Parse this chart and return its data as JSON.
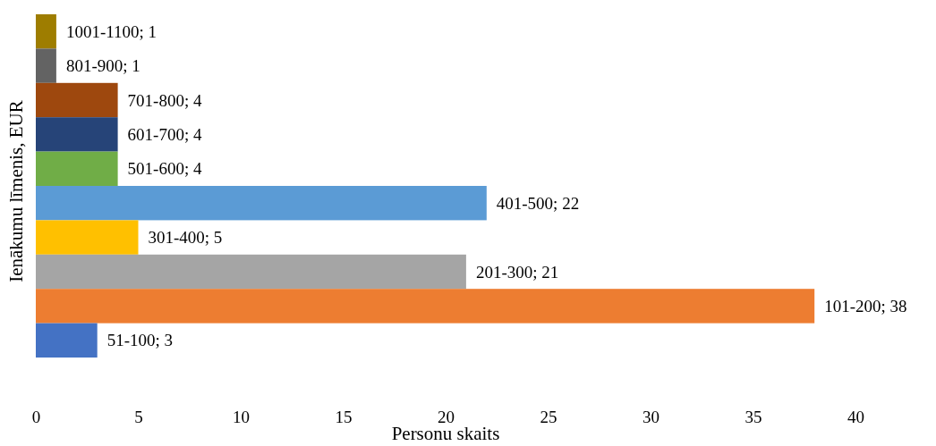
{
  "chart_data": {
    "type": "bar",
    "orientation": "horizontal",
    "xlabel": "Personu skaits",
    "ylabel": "Ienākumu līmenis, EUR",
    "categories": [
      null,
      null,
      null,
      null,
      null,
      null,
      null,
      null,
      null,
      null
    ],
    "values": [
      1,
      1,
      4,
      4,
      4,
      22,
      5,
      21,
      38,
      3
    ],
    "colors": [
      "#9e7d00",
      "#636363",
      "#9e480e",
      "#264478",
      "#70ad47",
      "#5b9bd5",
      "#ffc000",
      "#a5a5a5",
      "#ed7d31",
      "#4472c4"
    ],
    "value_labels": [
      "1001-1100; 1",
      "801-900; 1",
      "701-800; 4",
      "601-700; 4",
      "501-600; 4",
      "401-500; 22",
      "301-400; 5",
      "201-300; 21",
      "101-200; 38",
      "51-100; 3"
    ],
    "xlim": [
      0,
      40
    ],
    "xticks": [
      0,
      5,
      10,
      15,
      20,
      25,
      30,
      35,
      40
    ],
    "tick_labels": "x",
    "grid": false
  }
}
